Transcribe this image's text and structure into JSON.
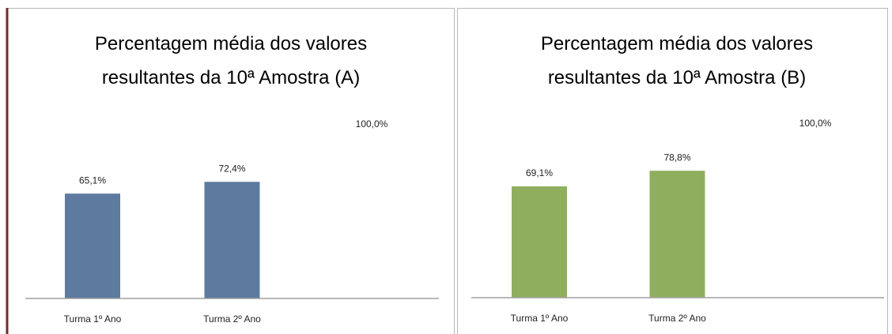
{
  "chart_data": [
    {
      "type": "bar",
      "title": "Percentagem média dos valores resultantes da 10ª Amostra (A)",
      "categories": [
        "Turma 1º Ano",
        "Turma 2º Ano",
        null
      ],
      "values": [
        65.1,
        72.4,
        100.0
      ],
      "value_labels": [
        "65,1%",
        "72,4%",
        "100,0%"
      ],
      "colors": [
        "#5d7b9f",
        "#5d7b9f",
        "#ffffff"
      ],
      "ylim": [
        0,
        100
      ]
    },
    {
      "type": "bar",
      "title": "Percentagem média dos valores resultantes da 10ª Amostra (B)",
      "categories": [
        "Turma 1º Ano",
        "Turma 2º Ano",
        null
      ],
      "values": [
        69.1,
        78.8,
        100.0
      ],
      "value_labels": [
        "69,1%",
        "78,8%",
        "100,0%"
      ],
      "colors": [
        "#8faf5f",
        "#8faf5f",
        "#ffffff"
      ],
      "ylim": [
        0,
        100
      ]
    }
  ]
}
